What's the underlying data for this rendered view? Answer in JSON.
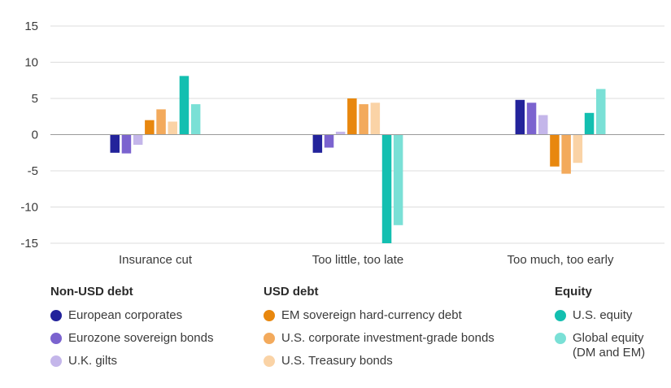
{
  "chart_data": {
    "type": "bar",
    "categories": [
      "Insurance cut",
      "Too little, too late",
      "Too much, too early"
    ],
    "ylim": [
      -15,
      15
    ],
    "yticks": [
      15,
      10,
      5,
      0,
      -5,
      -10,
      -15
    ],
    "ytick_labels": [
      "15",
      "10",
      "5",
      "0",
      "-5",
      "-10",
      "-15"
    ],
    "grid": true,
    "legend_position": "bottom",
    "series": [
      {
        "name": "European corporates",
        "group": "Non-USD debt",
        "color": "#23239b",
        "values": [
          -2.5,
          -2.5,
          4.8
        ]
      },
      {
        "name": "Eurozone sovereign bonds",
        "group": "Non-USD debt",
        "color": "#7b63cf",
        "values": [
          -2.6,
          -1.8,
          4.4
        ]
      },
      {
        "name": "U.K. gilts",
        "group": "Non-USD debt",
        "color": "#c4b6ea",
        "values": [
          -1.4,
          0.4,
          2.7
        ]
      },
      {
        "name": "EM sovereign hard-currency debt",
        "group": "USD debt",
        "color": "#e8870e",
        "values": [
          2.0,
          5.0,
          -4.4
        ]
      },
      {
        "name": "U.S. corporate investment-grade bonds",
        "group": "USD debt",
        "color": "#f3aa5c",
        "values": [
          3.5,
          4.2,
          -5.4
        ]
      },
      {
        "name": "U.S. Treasury bonds",
        "group": "USD debt",
        "color": "#fad3a6",
        "values": [
          1.8,
          4.4,
          -3.9
        ]
      },
      {
        "name": "U.S. equity",
        "group": "Equity",
        "color": "#13bfb0",
        "values": [
          8.1,
          -15.0,
          3.0
        ]
      },
      {
        "name": "Global equity (DM and EM)",
        "group": "Equity",
        "color": "#7ae0d6",
        "values": [
          4.2,
          -12.5,
          6.3
        ]
      }
    ]
  },
  "legend": {
    "groups": [
      {
        "title": "Non-USD debt",
        "items": [
          {
            "label": "European corporates",
            "color": "#23239b"
          },
          {
            "label": "Eurozone sovereign bonds",
            "color": "#7b63cf"
          },
          {
            "label": "U.K. gilts",
            "color": "#c4b6ea"
          }
        ]
      },
      {
        "title": "USD debt",
        "items": [
          {
            "label": "EM sovereign hard-currency debt",
            "color": "#e8870e"
          },
          {
            "label": "U.S. corporate investment-grade bonds",
            "color": "#f3aa5c"
          },
          {
            "label": "U.S. Treasury bonds",
            "color": "#fad3a6"
          }
        ]
      },
      {
        "title": "Equity",
        "items": [
          {
            "label": "U.S. equity",
            "color": "#13bfb0"
          },
          {
            "label": "Global equity\n(DM and EM)",
            "color": "#7ae0d6"
          }
        ]
      }
    ]
  }
}
